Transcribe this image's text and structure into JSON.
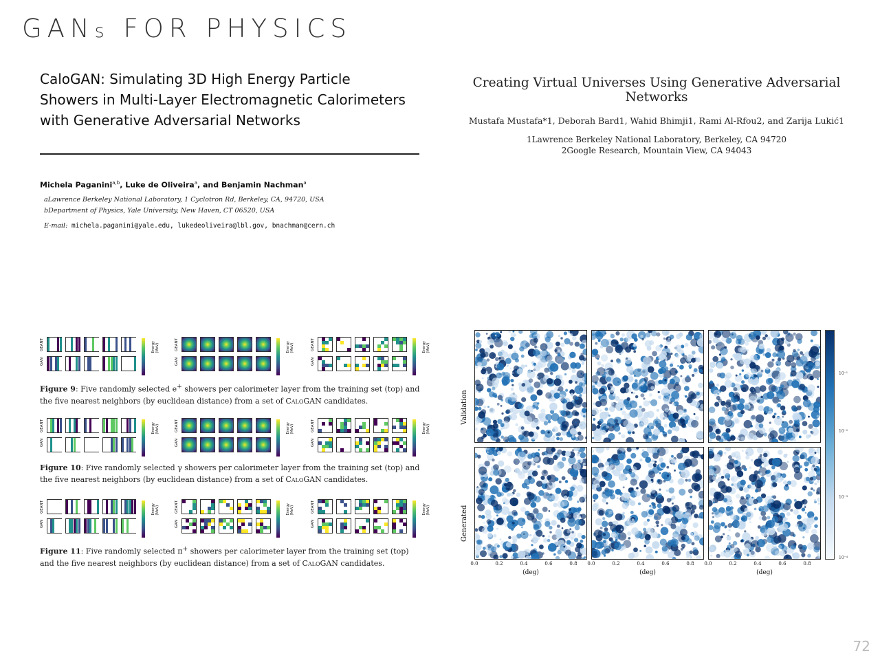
{
  "slide": {
    "title_main": "GANs FOR PHYSICS",
    "title_part1": "GAN",
    "title_part2": "s",
    "title_part3": " FOR PHYSICS",
    "page_number": "72"
  },
  "paper_left": {
    "title_line1": "CaloGAN: Simulating 3D High Energy Particle",
    "title_line2": "Showers in Multi-Layer Electromagnetic Calorimeters",
    "title_line3": "with Generative Adversarial Networks",
    "author1": "Michela Paganini",
    "author1_sup": "a,b",
    "author2": ", Luke de Oliveira",
    "author2_sup": "a",
    "author3": ", and Benjamin Nachman",
    "author3_sup": "a",
    "affil_a": "aLawrence Berkeley National Laboratory, 1 Cyclotron Rd, Berkeley, CA, 94720, USA",
    "affil_b": "bDepartment of Physics, Yale University, New Haven, CT 06520, USA",
    "email_label": "E-mail:",
    "email_addresses": " michela.paganini@yale.edu, lukedeoliveira@lbl.gov, bnachman@cern.ch"
  },
  "figures_left": [
    {
      "label": "Figure 9",
      "caption_1": ": Five randomly selected e",
      "caption_sup": "+",
      "caption_2": " showers per calorimeter layer from the training set (top) and the five nearest neighbors (by euclidean distance) from a set of ",
      "caption_sc": "CaloGAN",
      "caption_3": " candidates."
    },
    {
      "label": "Figure 10",
      "caption_1": ": Five randomly selected γ showers per calorimeter layer from the training set (top) and the five nearest neighbors (by euclidean distance) from a set of ",
      "caption_sup": "",
      "caption_2": "",
      "caption_sc": "CaloGAN",
      "caption_3": " candidates."
    },
    {
      "label": "Figure 11",
      "caption_1": ": Five randomly selected π",
      "caption_sup": "+",
      "caption_2": " showers per calorimeter layer from the training set (top) and the five nearest neighbors (by euclidean distance) from a set of ",
      "caption_sc": "CaloGAN",
      "caption_3": " candidates."
    }
  ],
  "figure_row_labels": {
    "geant": "GEANT",
    "gan": "GAN",
    "energy": "Energy (MeV)"
  },
  "paper_right": {
    "title": "Creating Virtual Universes Using Generative Adversarial Networks",
    "authors": "Mustafa Mustafa*1, Deborah Bard1, Wahid Bhimji1, Rami Al-Rfou2, and Zarija Lukić1",
    "affil_1": "1Lawrence Berkeley National Laboratory, Berkeley, CA 94720",
    "affil_2": "2Google Research, Mountain View, CA 94043"
  },
  "figure_right": {
    "row_labels": [
      "Validation",
      "Generated"
    ],
    "x_ticks": [
      "0.0",
      "0.2",
      "0.4",
      "0.6",
      "0.8"
    ],
    "x_label": "(deg)",
    "colorbar_ticks": [
      "10⁻¹",
      "10⁻²",
      "10⁻³",
      "10⁻⁴"
    ],
    "colors": {
      "dark": "#08306b",
      "mid": "#2171b5",
      "light": "#c6dbef"
    }
  }
}
